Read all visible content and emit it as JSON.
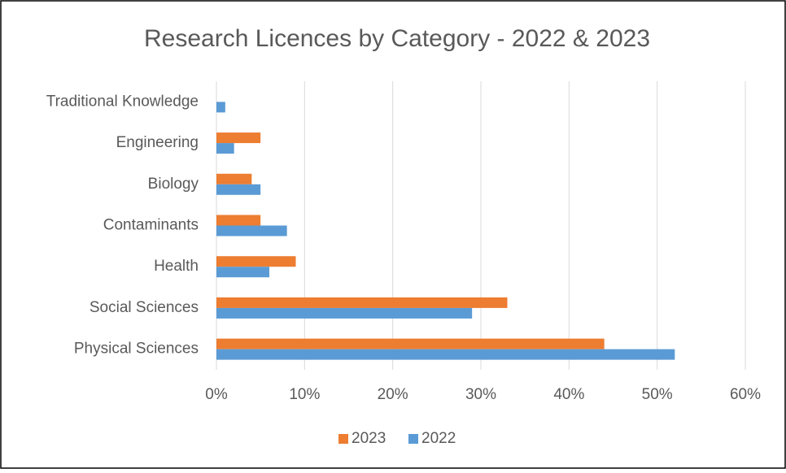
{
  "chart_data": {
    "type": "bar",
    "orientation": "horizontal",
    "title": "Research Licences by Category - 2022 & 2023",
    "categories": [
      "Physical Sciences",
      "Social Sciences",
      "Health",
      "Contaminants",
      "Biology",
      "Engineering",
      "Traditional Knowledge"
    ],
    "series": [
      {
        "name": "2023",
        "color": "#ed7d31",
        "values": [
          44,
          33,
          9,
          5,
          4,
          5,
          0
        ]
      },
      {
        "name": "2022",
        "color": "#5b9bd5",
        "values": [
          52,
          29,
          6,
          8,
          5,
          2,
          1
        ]
      }
    ],
    "xlim": [
      0,
      60
    ],
    "xticks": [
      {
        "value": 0,
        "label": "0%"
      },
      {
        "value": 10,
        "label": "10%"
      },
      {
        "value": 20,
        "label": "20%"
      },
      {
        "value": 30,
        "label": "30%"
      },
      {
        "value": 40,
        "label": "40%"
      },
      {
        "value": 50,
        "label": "50%"
      },
      {
        "value": 60,
        "label": "60%"
      }
    ],
    "grid": true,
    "legend": "bottom"
  }
}
